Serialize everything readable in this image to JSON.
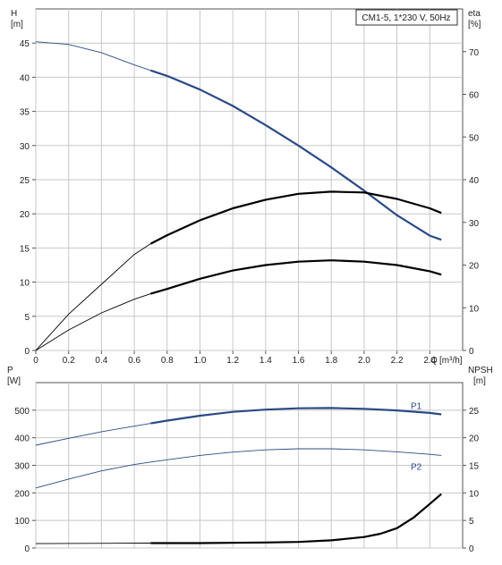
{
  "chart_data": [
    {
      "type": "line",
      "title": "CM1-5, 1*230 V, 50Hz",
      "left_axis": {
        "label": "H",
        "unit": "[m]",
        "ticks": [
          "0",
          "5",
          "10",
          "15",
          "20",
          "25",
          "30",
          "35",
          "40",
          "45"
        ],
        "range": [
          0,
          50
        ]
      },
      "right_axis": {
        "label": "eta",
        "unit": "[%]",
        "ticks": [
          "0",
          "10",
          "20",
          "30",
          "40",
          "50",
          "60",
          "70"
        ],
        "range": [
          0,
          80
        ]
      },
      "x_axis": {
        "label": "Q",
        "unit": "[m³/h]",
        "ticks": [
          "0",
          "0.2",
          "0.4",
          "0.6",
          "0.8",
          "1.0",
          "1.2",
          "1.4",
          "1.6",
          "1.8",
          "2.0",
          "2.2",
          "2.4"
        ],
        "range": [
          0,
          2.6
        ]
      },
      "grid": true,
      "series": [
        {
          "axis": "left",
          "color": "#2b4a86",
          "x": [
            0,
            0.2,
            0.4,
            0.6,
            0.7,
            0.8,
            1.0,
            1.2,
            1.4,
            1.6,
            1.8,
            2.0,
            2.2,
            2.4,
            2.47
          ],
          "y": [
            45.2,
            44.8,
            43.6,
            41.8,
            41.0,
            40.2,
            38.2,
            35.8,
            33.0,
            30.0,
            26.8,
            23.4,
            19.8,
            16.8,
            16.2
          ],
          "bold_from": 0.7
        },
        {
          "axis": "right",
          "color": "#000000",
          "x": [
            0,
            0.2,
            0.4,
            0.6,
            0.7,
            0.8,
            1.0,
            1.2,
            1.4,
            1.6,
            1.8,
            2.0,
            2.2,
            2.4,
            2.47
          ],
          "y": [
            0,
            8.5,
            15.5,
            22.5,
            25.0,
            27.0,
            30.5,
            33.3,
            35.3,
            36.7,
            37.2,
            37.0,
            35.5,
            33.3,
            32.2
          ],
          "bold_from": 0.7
        },
        {
          "axis": "left",
          "color": "#000000",
          "x": [
            0,
            0.2,
            0.4,
            0.6,
            0.7,
            0.8,
            1.0,
            1.2,
            1.4,
            1.6,
            1.8,
            2.0,
            2.2,
            2.4,
            2.47
          ],
          "y": [
            0,
            3.0,
            5.5,
            7.5,
            8.3,
            9.0,
            10.5,
            11.7,
            12.5,
            13.0,
            13.2,
            13.0,
            12.5,
            11.6,
            11.1
          ],
          "bold_from": 0.7
        }
      ]
    },
    {
      "type": "line",
      "left_axis": {
        "label": "P",
        "unit": "[W]",
        "ticks": [
          "0",
          "100",
          "200",
          "300",
          "400",
          "500"
        ],
        "range": [
          0,
          600
        ]
      },
      "right_axis": {
        "label": "NPSH",
        "unit": "[m]",
        "ticks": [
          "0",
          "5",
          "10",
          "15",
          "20",
          "25"
        ],
        "range": [
          0,
          30
        ]
      },
      "x_range": [
        0,
        2.6
      ],
      "grid": true,
      "series": [
        {
          "name": "P1",
          "axis": "left",
          "color": "#2b4a86",
          "x": [
            0,
            0.2,
            0.4,
            0.6,
            0.7,
            0.8,
            1.0,
            1.2,
            1.4,
            1.6,
            1.8,
            2.0,
            2.2,
            2.4,
            2.47
          ],
          "y": [
            373,
            398,
            422,
            442,
            452,
            462,
            480,
            494,
            502,
            507,
            508,
            505,
            499,
            490,
            485
          ],
          "bold_from": 0.7
        },
        {
          "name": "P2",
          "axis": "left",
          "color": "#2b4a86",
          "x": [
            0,
            0.2,
            0.4,
            0.6,
            0.7,
            0.8,
            1.0,
            1.2,
            1.4,
            1.6,
            1.8,
            2.0,
            2.2,
            2.4,
            2.47
          ],
          "y": [
            218,
            250,
            280,
            303,
            312,
            320,
            336,
            348,
            356,
            360,
            360,
            356,
            349,
            340,
            336
          ],
          "bold_from": 99
        },
        {
          "axis": "right",
          "color": "#000000",
          "x": [
            0,
            0.7,
            1.0,
            1.4,
            1.6,
            1.8,
            2.0,
            2.1,
            2.2,
            2.3,
            2.4,
            2.47
          ],
          "y": [
            0.8,
            0.9,
            0.9,
            1.0,
            1.1,
            1.4,
            2.0,
            2.6,
            3.6,
            5.5,
            8.0,
            9.8
          ],
          "bold_from": 0.7
        }
      ]
    }
  ]
}
